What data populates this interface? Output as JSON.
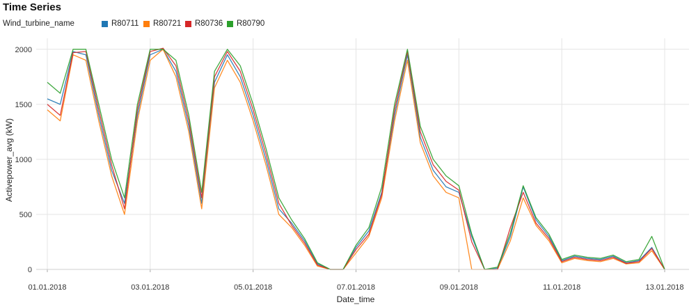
{
  "chart_data": {
    "type": "line",
    "title": "Time Series",
    "xlabel": "Date_time",
    "ylabel": "Activepower_avg (kW)",
    "legend_title": "Wind_turbine_name",
    "legend_position": "top-left",
    "grid": true,
    "ylim": [
      0,
      2100
    ],
    "yticks": [
      0,
      500,
      1000,
      1500,
      2000
    ],
    "xlim": [
      "2018-01-01",
      "2018-01-13"
    ],
    "xticks": [
      "01.01.2018",
      "03.01.2018",
      "05.01.2018",
      "07.01.2018",
      "09.01.2018",
      "11.01.2018",
      "13.01.2018"
    ],
    "x": [
      "2018-01-01 00:00",
      "2018-01-01 06:00",
      "2018-01-01 12:00",
      "2018-01-01 18:00",
      "2018-01-02 00:00",
      "2018-01-02 06:00",
      "2018-01-02 12:00",
      "2018-01-02 18:00",
      "2018-01-03 00:00",
      "2018-01-03 06:00",
      "2018-01-03 12:00",
      "2018-01-03 18:00",
      "2018-01-04 00:00",
      "2018-01-04 06:00",
      "2018-01-04 12:00",
      "2018-01-04 18:00",
      "2018-01-05 00:00",
      "2018-01-05 06:00",
      "2018-01-05 12:00",
      "2018-01-05 18:00",
      "2018-01-06 00:00",
      "2018-01-06 06:00",
      "2018-01-06 12:00",
      "2018-01-06 18:00",
      "2018-01-07 00:00",
      "2018-01-07 06:00",
      "2018-01-07 12:00",
      "2018-01-07 18:00",
      "2018-01-08 00:00",
      "2018-01-08 06:00",
      "2018-01-08 12:00",
      "2018-01-08 18:00",
      "2018-01-09 00:00",
      "2018-01-09 06:00",
      "2018-01-09 12:00",
      "2018-01-09 18:00",
      "2018-01-10 00:00",
      "2018-01-10 06:00",
      "2018-01-10 12:00",
      "2018-01-10 18:00",
      "2018-01-11 00:00",
      "2018-01-11 06:00",
      "2018-01-11 12:00",
      "2018-01-11 18:00",
      "2018-01-12 00:00",
      "2018-01-12 06:00",
      "2018-01-12 12:00",
      "2018-01-12 18:00",
      "2018-01-13 00:00"
    ],
    "series": [
      {
        "name": "R80711",
        "color": "#1f77b4",
        "values": [
          1550,
          1500,
          1980,
          1950,
          1400,
          900,
          600,
          1400,
          1950,
          2000,
          1800,
          1300,
          600,
          1700,
          1950,
          1750,
          1400,
          1000,
          550,
          420,
          260,
          50,
          0,
          0,
          200,
          350,
          700,
          1400,
          1950,
          1200,
          900,
          750,
          700,
          300,
          0,
          10,
          300,
          750,
          450,
          300,
          80,
          120,
          100,
          90,
          120,
          60,
          80,
          200,
          0
        ]
      },
      {
        "name": "R80721",
        "color": "#ff7f0e",
        "values": [
          1450,
          1350,
          1950,
          1900,
          1350,
          850,
          500,
          1350,
          1900,
          2000,
          1750,
          1250,
          550,
          1650,
          1900,
          1700,
          1350,
          950,
          500,
          380,
          220,
          30,
          0,
          0,
          150,
          300,
          650,
          1350,
          1900,
          1150,
          850,
          700,
          650,
          0,
          0,
          0,
          260,
          650,
          400,
          260,
          60,
          100,
          80,
          70,
          100,
          50,
          60,
          170,
          0
        ]
      },
      {
        "name": "R80736",
        "color": "#d62728",
        "values": [
          1500,
          1400,
          1970,
          1980,
          1450,
          950,
          550,
          1450,
          1980,
          2010,
          1850,
          1350,
          650,
          1750,
          1980,
          1800,
          1450,
          1050,
          600,
          400,
          240,
          40,
          0,
          0,
          180,
          320,
          680,
          1450,
          1980,
          1250,
          950,
          800,
          720,
          250,
          0,
          0,
          380,
          700,
          420,
          280,
          70,
          110,
          90,
          80,
          110,
          55,
          70,
          190,
          0
        ]
      },
      {
        "name": "R80790",
        "color": "#2ca02c",
        "values": [
          1700,
          1600,
          2000,
          2000,
          1500,
          1000,
          650,
          1500,
          2000,
          2000,
          1900,
          1400,
          700,
          1800,
          2000,
          1850,
          1500,
          1100,
          650,
          450,
          280,
          60,
          0,
          0,
          220,
          380,
          750,
          1500,
          2000,
          1300,
          1000,
          850,
          760,
          320,
          0,
          20,
          330,
          760,
          470,
          320,
          90,
          130,
          110,
          100,
          130,
          70,
          90,
          300,
          0
        ]
      }
    ]
  }
}
